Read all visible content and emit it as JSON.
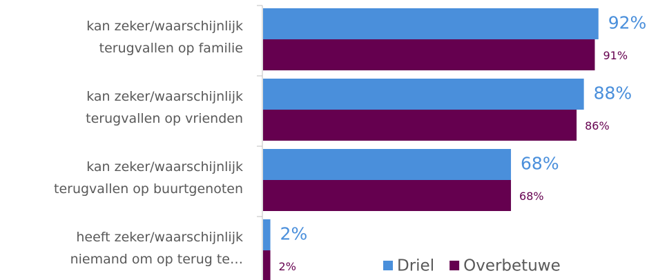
{
  "chart_data": {
    "type": "bar",
    "orientation": "horizontal",
    "categories": [
      "kan zeker/waarschijnlijk\nterugvallen op familie",
      "kan zeker/waarschijnlijk\nterugvallen op vrienden",
      "kan zeker/waarschijnlijk\nterugvallen op buurtgenoten",
      "heeft zeker/waarschijnlijk\nniemand om op terug te…"
    ],
    "series": [
      {
        "name": "Driel",
        "color": "#4a8fdb",
        "values": [
          92,
          88,
          68,
          2
        ],
        "value_labels": [
          "92%",
          "88%",
          "68%",
          "2%"
        ]
      },
      {
        "name": "Overbetuwe",
        "color": "#65004f",
        "values": [
          91,
          86,
          68,
          2
        ],
        "value_labels": [
          "91%",
          "86%",
          "68%",
          "2%"
        ]
      }
    ],
    "xlim": [
      0,
      100
    ],
    "legend": "bottom-right"
  }
}
